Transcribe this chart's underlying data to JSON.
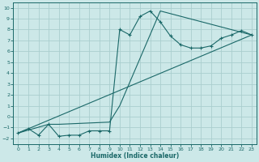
{
  "xlabel": "Humidex (Indice chaleur)",
  "bg_color": "#cce8e8",
  "grid_color": "#aacece",
  "line_color": "#1a6868",
  "xlim": [
    -0.5,
    23.5
  ],
  "ylim": [
    -2.5,
    10.5
  ],
  "xticks": [
    0,
    1,
    2,
    3,
    4,
    5,
    6,
    7,
    8,
    9,
    10,
    11,
    12,
    13,
    14,
    15,
    16,
    17,
    18,
    19,
    20,
    21,
    22,
    23
  ],
  "yticks": [
    -2,
    -1,
    0,
    1,
    2,
    3,
    4,
    5,
    6,
    7,
    8,
    9,
    10
  ],
  "line1_x": [
    0,
    1,
    2,
    3,
    4,
    5,
    6,
    7,
    8,
    9,
    10,
    11,
    12,
    13,
    14,
    15,
    16,
    17,
    18,
    19,
    20,
    21,
    22,
    23
  ],
  "line1_y": [
    -1.5,
    -1.1,
    -1.7,
    -0.7,
    -1.8,
    -1.7,
    -1.7,
    -1.3,
    -1.3,
    -1.3,
    8.0,
    7.5,
    9.2,
    9.7,
    8.7,
    7.4,
    6.6,
    6.3,
    6.3,
    6.5,
    7.2,
    7.5,
    7.9,
    7.5
  ],
  "line2_x": [
    0,
    3,
    4,
    9,
    10,
    14,
    23
  ],
  "line2_y": [
    -1.5,
    -0.7,
    -0.7,
    -0.5,
    1.0,
    9.7,
    7.5
  ],
  "line3_x": [
    0,
    23
  ],
  "line3_y": [
    -1.5,
    7.5
  ]
}
